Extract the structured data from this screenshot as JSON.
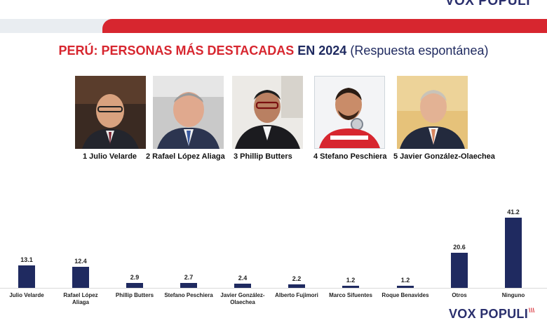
{
  "header": {
    "logo_top": "VOX POPULI"
  },
  "title": {
    "part1": "PERÚ: PERSONAS MÁS DESTACADAS",
    "part2": "EN 2024",
    "part3": "(Respuesta espontánea)"
  },
  "ranking": [
    {
      "label": "1 Julio Velarde"
    },
    {
      "label": "2 Rafael López Aliaga"
    },
    {
      "label": "3 Phillip Butters"
    },
    {
      "label": "4 Stefano Peschiera"
    },
    {
      "label": "5 Javier González-Olaechea"
    }
  ],
  "colors": {
    "bar": "#1f2a60",
    "accent_red": "#d7262f",
    "brand_navy": "#2a2f6d"
  },
  "chart_data": {
    "type": "bar",
    "categories": [
      "Julio Velarde",
      "Rafael López Aliaga",
      "Phillip Butters",
      "Stefano Peschiera",
      "Javier González-Olaechea",
      "Alberto Fujimori",
      "Marco Sifuentes",
      "Roque Benavides",
      "Otros",
      "Ninguno"
    ],
    "values": [
      13.1,
      12.4,
      2.9,
      2.7,
      2.4,
      2.2,
      1.2,
      1.2,
      20.6,
      41.2
    ],
    "value_labels": [
      "13.1",
      "12.4",
      "2.9",
      "2.7",
      "2.4",
      "2.2",
      "1.2",
      "1.2",
      "20.6",
      "41.2"
    ],
    "category_labels": [
      [
        "Julio Velarde"
      ],
      [
        "Rafael López",
        "Aliaga"
      ],
      [
        "Phillip Butters"
      ],
      [
        "Stefano Peschiera"
      ],
      [
        "Javier González-",
        "Olaechea"
      ],
      [
        "Alberto Fujimori"
      ],
      [
        "Marco Sifuentes"
      ],
      [
        "Roque Benavides"
      ],
      [
        "Otros"
      ],
      [
        "Ninguno"
      ]
    ],
    "title": "",
    "xlabel": "",
    "ylabel": "",
    "ylim": [
      0,
      41.2
    ],
    "grid": false,
    "legend": "none"
  },
  "footer": {
    "logo_bottom": "VOX POPULI",
    "logo_mark": "\\\\\\"
  }
}
